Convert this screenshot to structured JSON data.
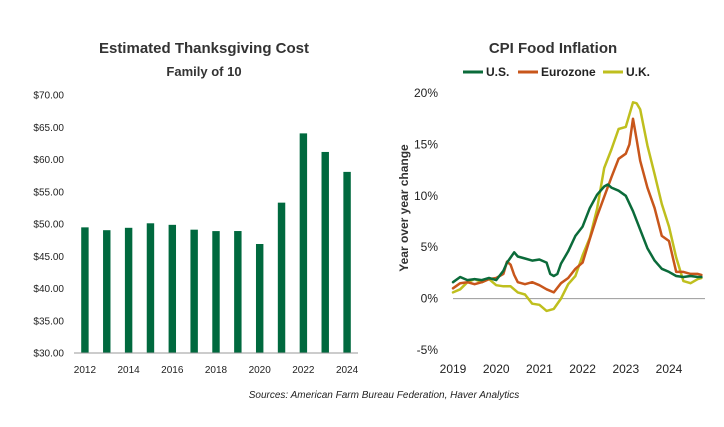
{
  "left_chart": {
    "title": "Estimated Thanksgiving Cost",
    "subtitle": "Family of 10"
  },
  "right_chart": {
    "title": "CPI Food Inflation",
    "ylabel": "Year over year change"
  },
  "source": "Sources: American Farm Bureau Federation, Haver Analytics",
  "colors": {
    "bar": "#00693E",
    "us": "#0B6B3A",
    "eurozone": "#C8561B",
    "uk": "#BFBF1E"
  },
  "chart_data": [
    {
      "type": "bar",
      "title": "Estimated Thanksgiving Cost",
      "subtitle": "Family of 10",
      "categories": [
        "2012",
        "2013",
        "2014",
        "2015",
        "2016",
        "2017",
        "2018",
        "2019",
        "2020",
        "2021",
        "2022",
        "2023",
        "2024"
      ],
      "values": [
        49.48,
        49.04,
        49.41,
        50.11,
        49.87,
        49.12,
        48.9,
        48.91,
        46.9,
        53.31,
        64.05,
        61.17,
        58.08
      ],
      "ylim": [
        30,
        70
      ],
      "yticks": [
        "$30.00",
        "$35.00",
        "$40.00",
        "$45.00",
        "$50.00",
        "$55.00",
        "$60.00",
        "$65.00",
        "$70.00"
      ],
      "xtick_labels": [
        "2012",
        "2014",
        "2016",
        "2018",
        "2020",
        "2022",
        "2024"
      ],
      "xlabel": "",
      "ylabel": "",
      "grid": false
    },
    {
      "type": "line",
      "title": "CPI Food Inflation",
      "xlabel": "",
      "ylabel": "Year over year change",
      "xlim": [
        "2019-01",
        "2024-10"
      ],
      "ylim": [
        -5,
        20
      ],
      "yticks": [
        "-5%",
        "0%",
        "5%",
        "10%",
        "15%",
        "20%"
      ],
      "xtick_labels": [
        "2019",
        "2020",
        "2021",
        "2022",
        "2023",
        "2024"
      ],
      "legend": "top",
      "grid": false,
      "series": [
        {
          "name": "U.S.",
          "points": [
            [
              "2019-01",
              1.6
            ],
            [
              "2019-03",
              2.1
            ],
            [
              "2019-05",
              1.8
            ],
            [
              "2019-07",
              1.9
            ],
            [
              "2019-09",
              1.8
            ],
            [
              "2019-11",
              2.0
            ],
            [
              "2020-01",
              1.8
            ],
            [
              "2020-03",
              2.7
            ],
            [
              "2020-04",
              3.5
            ],
            [
              "2020-05",
              4.0
            ],
            [
              "2020-06",
              4.5
            ],
            [
              "2020-07",
              4.1
            ],
            [
              "2020-09",
              3.9
            ],
            [
              "2020-11",
              3.7
            ],
            [
              "2021-01",
              3.8
            ],
            [
              "2021-03",
              3.5
            ],
            [
              "2021-04",
              2.4
            ],
            [
              "2021-05",
              2.2
            ],
            [
              "2021-06",
              2.4
            ],
            [
              "2021-07",
              3.4
            ],
            [
              "2021-09",
              4.6
            ],
            [
              "2021-11",
              6.1
            ],
            [
              "2022-01",
              7.0
            ],
            [
              "2022-03",
              8.8
            ],
            [
              "2022-05",
              10.1
            ],
            [
              "2022-07",
              10.9
            ],
            [
              "2022-08",
              11.1
            ],
            [
              "2022-09",
              10.8
            ],
            [
              "2022-11",
              10.5
            ],
            [
              "2023-01",
              10.0
            ],
            [
              "2023-03",
              8.5
            ],
            [
              "2023-05",
              6.7
            ],
            [
              "2023-07",
              4.9
            ],
            [
              "2023-09",
              3.7
            ],
            [
              "2023-11",
              2.9
            ],
            [
              "2024-01",
              2.6
            ],
            [
              "2024-03",
              2.2
            ],
            [
              "2024-05",
              2.1
            ],
            [
              "2024-07",
              2.2
            ],
            [
              "2024-09",
              2.1
            ],
            [
              "2024-10",
              2.1
            ]
          ]
        },
        {
          "name": "Eurozone",
          "points": [
            [
              "2019-01",
              1.0
            ],
            [
              "2019-03",
              1.5
            ],
            [
              "2019-05",
              1.6
            ],
            [
              "2019-07",
              1.4
            ],
            [
              "2019-09",
              1.6
            ],
            [
              "2019-11",
              1.9
            ],
            [
              "2020-01",
              2.0
            ],
            [
              "2020-03",
              2.4
            ],
            [
              "2020-04",
              3.6
            ],
            [
              "2020-05",
              3.3
            ],
            [
              "2020-06",
              2.3
            ],
            [
              "2020-07",
              1.6
            ],
            [
              "2020-09",
              1.4
            ],
            [
              "2020-11",
              1.6
            ],
            [
              "2021-01",
              1.3
            ],
            [
              "2021-03",
              0.9
            ],
            [
              "2021-05",
              0.6
            ],
            [
              "2021-07",
              1.5
            ],
            [
              "2021-09",
              2.0
            ],
            [
              "2021-11",
              2.9
            ],
            [
              "2022-01",
              3.5
            ],
            [
              "2022-03",
              5.8
            ],
            [
              "2022-05",
              8.0
            ],
            [
              "2022-07",
              9.9
            ],
            [
              "2022-09",
              11.8
            ],
            [
              "2022-11",
              13.6
            ],
            [
              "2023-01",
              14.1
            ],
            [
              "2023-02",
              15.0
            ],
            [
              "2023-03",
              17.5
            ],
            [
              "2023-04",
              15.5
            ],
            [
              "2023-05",
              13.4
            ],
            [
              "2023-07",
              10.8
            ],
            [
              "2023-09",
              8.8
            ],
            [
              "2023-11",
              6.1
            ],
            [
              "2024-01",
              5.6
            ],
            [
              "2024-03",
              2.6
            ],
            [
              "2024-05",
              2.6
            ],
            [
              "2024-07",
              2.4
            ],
            [
              "2024-09",
              2.4
            ],
            [
              "2024-10",
              2.3
            ]
          ]
        },
        {
          "name": "U.K.",
          "points": [
            [
              "2019-01",
              0.6
            ],
            [
              "2019-03",
              0.9
            ],
            [
              "2019-05",
              1.6
            ],
            [
              "2019-07",
              1.9
            ],
            [
              "2019-09",
              1.6
            ],
            [
              "2019-11",
              1.9
            ],
            [
              "2020-01",
              1.3
            ],
            [
              "2020-03",
              1.2
            ],
            [
              "2020-05",
              1.2
            ],
            [
              "2020-07",
              0.6
            ],
            [
              "2020-09",
              0.4
            ],
            [
              "2020-11",
              -0.5
            ],
            [
              "2021-01",
              -0.6
            ],
            [
              "2021-03",
              -1.2
            ],
            [
              "2021-05",
              -1.0
            ],
            [
              "2021-07",
              0.0
            ],
            [
              "2021-09",
              1.4
            ],
            [
              "2021-11",
              2.2
            ],
            [
              "2022-01",
              4.2
            ],
            [
              "2022-03",
              5.9
            ],
            [
              "2022-05",
              8.7
            ],
            [
              "2022-07",
              12.7
            ],
            [
              "2022-09",
              14.5
            ],
            [
              "2022-11",
              16.5
            ],
            [
              "2023-01",
              16.7
            ],
            [
              "2023-03",
              19.1
            ],
            [
              "2023-04",
              19.0
            ],
            [
              "2023-05",
              18.4
            ],
            [
              "2023-07",
              14.9
            ],
            [
              "2023-09",
              12.1
            ],
            [
              "2023-11",
              9.2
            ],
            [
              "2024-01",
              7.0
            ],
            [
              "2024-03",
              4.0
            ],
            [
              "2024-05",
              1.7
            ],
            [
              "2024-07",
              1.5
            ],
            [
              "2024-09",
              1.9
            ],
            [
              "2024-10",
              2.0
            ]
          ]
        }
      ]
    }
  ]
}
